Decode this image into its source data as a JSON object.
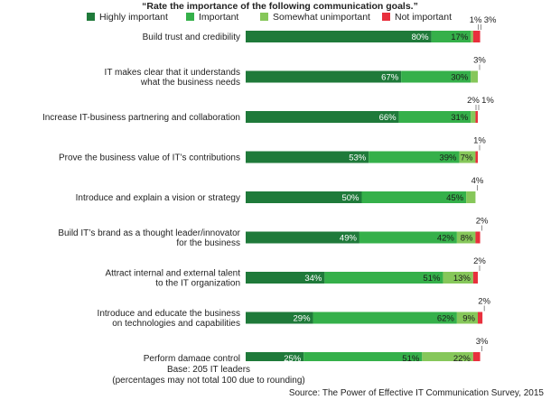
{
  "title": "“Rate the importance of the following communication goals.”",
  "chart_data": {
    "type": "bar",
    "orientation": "horizontal",
    "stacked": true,
    "xlim": [
      0,
      100
    ],
    "legend_position": "top",
    "categories": [
      "Build trust and credibility",
      "IT makes clear that it understands what the business needs",
      "Increase IT-business partnering and collaboration",
      "Prove the business value of IT’s contributions",
      "Introduce and explain a vision or strategy",
      "Build IT’s brand as a thought leader/innovator for the business",
      "Attract internal and external talent to the IT organization",
      "Introduce and educate the business on technologies and capabilities",
      "Perform damage control"
    ],
    "category_lines": [
      [
        "Build trust and credibility"
      ],
      [
        "IT makes clear that it understands",
        "what the business needs"
      ],
      [
        "Increase IT-business partnering and collaboration"
      ],
      [
        "Prove the business value of IT’s contributions"
      ],
      [
        "Introduce and explain a vision or strategy"
      ],
      [
        "Build IT’s brand as a thought leader/innovator",
        "for the business"
      ],
      [
        "Attract internal and external talent",
        "to the IT organization"
      ],
      [
        "Introduce and educate the business",
        "on technologies and capabilities"
      ],
      [
        "Perform damage control"
      ]
    ],
    "series": [
      {
        "name": "Highly important",
        "color": "#1f7a3a",
        "values": [
          80,
          67,
          66,
          53,
          50,
          49,
          34,
          29,
          25
        ]
      },
      {
        "name": "Important",
        "color": "#35b04a",
        "values": [
          17,
          30,
          31,
          39,
          45,
          42,
          51,
          62,
          51
        ]
      },
      {
        "name": "Somewhat unimportant",
        "color": "#86c75a",
        "values": [
          1,
          3,
          2,
          7,
          4,
          8,
          13,
          9,
          22
        ]
      },
      {
        "name": "Not important",
        "color": "#e8303d",
        "values": [
          3,
          0,
          1,
          1,
          0,
          2,
          2,
          2,
          3
        ]
      }
    ],
    "data_labels": [
      [
        "80%",
        "17%",
        "1%",
        "3%"
      ],
      [
        "67%",
        "30%",
        "3%",
        ""
      ],
      [
        "66%",
        "31%",
        "2%",
        "1%"
      ],
      [
        "53%",
        "39%",
        "7%",
        "1%"
      ],
      [
        "50%",
        "45%",
        "4%",
        ""
      ],
      [
        "49%",
        "42%",
        "8%",
        "2%"
      ],
      [
        "34%",
        "51%",
        "13%",
        "2%"
      ],
      [
        "29%",
        "62%",
        "9%",
        "2%"
      ],
      [
        "25%",
        "51%",
        "22%",
        "3%"
      ]
    ]
  },
  "footnote": {
    "base": "Base: 205 IT leaders",
    "note": "(percentages may not total 100 due to rounding)",
    "source": "Source: The Power of Effective IT Communication Survey, 2015"
  }
}
